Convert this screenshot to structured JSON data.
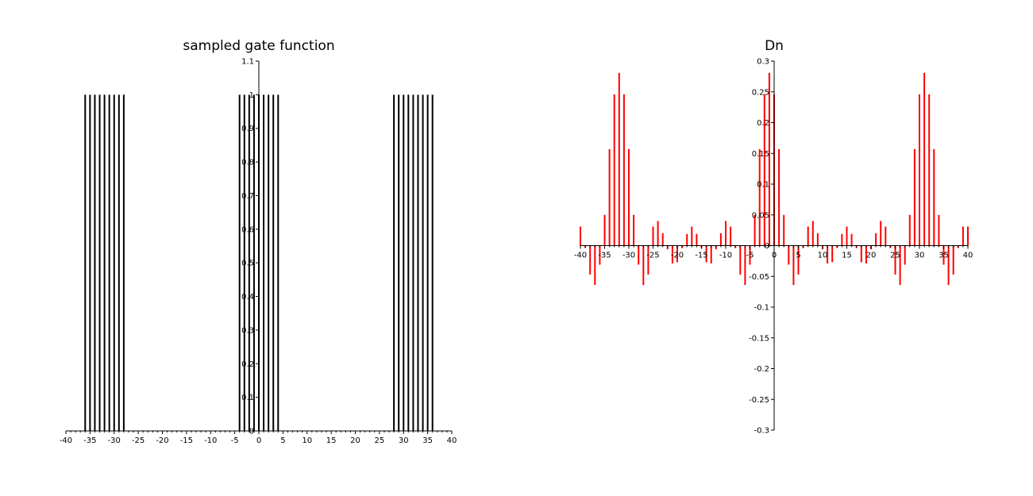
{
  "chart_data": [
    {
      "type": "stem",
      "title": "sampled gate function",
      "xlabel": "",
      "ylabel": "",
      "xlim": [
        -40,
        40
      ],
      "ylim": [
        0,
        1.1
      ],
      "xticks": [
        "-40",
        "-35",
        "-30",
        "-25",
        "-20",
        "-15",
        "-10",
        "-5",
        "0",
        "5",
        "10",
        "15",
        "20",
        "25",
        "30",
        "35",
        "40"
      ],
      "yticks": [
        "0",
        "0.1",
        "0.2",
        "0.3",
        "0.4",
        "0.5",
        "0.6",
        "0.7",
        "0.8",
        "0.9",
        "1",
        "1.1"
      ],
      "color": "#000000",
      "points": [
        {
          "x": -36,
          "y": 1
        },
        {
          "x": -35,
          "y": 1
        },
        {
          "x": -34,
          "y": 1
        },
        {
          "x": -33,
          "y": 1
        },
        {
          "x": -32,
          "y": 1
        },
        {
          "x": -31,
          "y": 1
        },
        {
          "x": -30,
          "y": 1
        },
        {
          "x": -29,
          "y": 1
        },
        {
          "x": -28,
          "y": 1
        },
        {
          "x": -4,
          "y": 1
        },
        {
          "x": -3,
          "y": 1
        },
        {
          "x": -2,
          "y": 1
        },
        {
          "x": -1,
          "y": 1
        },
        {
          "x": 0,
          "y": 1
        },
        {
          "x": 1,
          "y": 1
        },
        {
          "x": 2,
          "y": 1
        },
        {
          "x": 3,
          "y": 1
        },
        {
          "x": 4,
          "y": 1
        },
        {
          "x": 28,
          "y": 1
        },
        {
          "x": 29,
          "y": 1
        },
        {
          "x": 30,
          "y": 1
        },
        {
          "x": 31,
          "y": 1
        },
        {
          "x": 32,
          "y": 1
        },
        {
          "x": 33,
          "y": 1
        },
        {
          "x": 34,
          "y": 1
        },
        {
          "x": 35,
          "y": 1
        },
        {
          "x": 36,
          "y": 1
        }
      ]
    },
    {
      "type": "stem",
      "title": "Dn",
      "xlabel": "",
      "ylabel": "",
      "xlim": [
        -40,
        40
      ],
      "ylim": [
        -0.3,
        0.3
      ],
      "xticks": [
        "-40",
        "-35",
        "-30",
        "-25",
        "-20",
        "-15",
        "-10",
        "-5",
        "0",
        "5",
        "10",
        "15",
        "20",
        "25",
        "30",
        "35",
        "40"
      ],
      "yticks": [
        "-0.3",
        "-0.25",
        "-0.2",
        "-0.15",
        "-0.1",
        "-0.05",
        "0",
        "0.05",
        "0.1",
        "0.15",
        "0.2",
        "0.25",
        "0.3"
      ],
      "color": "#ff0000",
      "x": [
        -40,
        -39,
        -38,
        -37,
        -36,
        -35,
        -34,
        -33,
        -32,
        -31,
        -30,
        -29,
        -28,
        -27,
        -26,
        -25,
        -24,
        -23,
        -22,
        -21,
        -20,
        -19,
        -18,
        -17,
        -16,
        -15,
        -14,
        -13,
        -12,
        -11,
        -10,
        -9,
        -8,
        -7,
        -6,
        -5,
        -4,
        -3,
        -2,
        -1,
        0,
        1,
        2,
        3,
        4,
        5,
        6,
        7,
        8,
        9,
        10,
        11,
        12,
        13,
        14,
        15,
        16,
        17,
        18,
        19,
        20,
        21,
        22,
        23,
        24,
        25,
        26,
        27,
        28,
        29,
        30,
        31,
        32,
        33,
        34,
        35,
        36,
        37,
        38,
        39,
        40
      ],
      "values": [
        0.031,
        -0.004,
        -0.047,
        -0.064,
        -0.031,
        0.05,
        0.157,
        0.246,
        0.281,
        0.246,
        0.157,
        0.05,
        -0.031,
        -0.064,
        -0.047,
        0.031,
        0.04,
        0.02,
        -0.006,
        -0.029,
        -0.027,
        -0.004,
        0.019,
        0.031,
        0.019,
        -0.004,
        -0.027,
        -0.029,
        -0.006,
        0.02,
        0.04,
        0.031,
        -0.004,
        -0.047,
        -0.064,
        -0.031,
        0.05,
        0.157,
        0.246,
        0.281,
        0.246,
        0.157,
        0.05,
        -0.031,
        -0.064,
        -0.047,
        -0.004,
        0.031,
        0.04,
        0.02,
        -0.006,
        -0.029,
        -0.027,
        -0.004,
        0.019,
        0.031,
        0.019,
        -0.004,
        -0.027,
        -0.029,
        -0.006,
        0.02,
        0.04,
        0.031,
        -0.004,
        -0.047,
        -0.064,
        -0.031,
        0.05,
        0.157,
        0.246,
        0.281,
        0.246,
        0.157,
        0.05,
        -0.031,
        -0.064,
        -0.047,
        -0.004,
        0.031,
        0.031
      ]
    }
  ]
}
